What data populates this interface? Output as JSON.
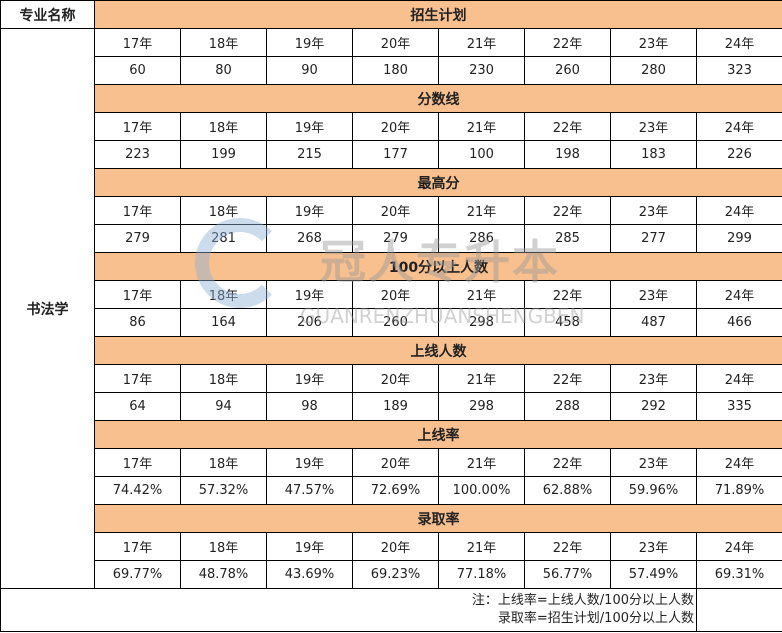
{
  "header": {
    "major_label": "专业名称",
    "major": "书法学"
  },
  "years": [
    "17年",
    "18年",
    "19年",
    "20年",
    "21年",
    "22年",
    "23年",
    "24年"
  ],
  "sections": [
    {
      "title": "招生计划",
      "values": [
        "60",
        "80",
        "90",
        "180",
        "230",
        "260",
        "280",
        "323"
      ]
    },
    {
      "title": "分数线",
      "values": [
        "223",
        "199",
        "215",
        "177",
        "100",
        "198",
        "183",
        "226"
      ]
    },
    {
      "title": "最高分",
      "values": [
        "279",
        "281",
        "268",
        "279",
        "286",
        "285",
        "277",
        "299"
      ]
    },
    {
      "title": "100分以上人数",
      "values": [
        "86",
        "164",
        "206",
        "260",
        "298",
        "458",
        "487",
        "466"
      ]
    },
    {
      "title": "上线人数",
      "values": [
        "64",
        "94",
        "98",
        "189",
        "298",
        "288",
        "292",
        "335"
      ]
    },
    {
      "title": "上线率",
      "values": [
        "74.42%",
        "57.32%",
        "47.57%",
        "72.69%",
        "100.00%",
        "62.88%",
        "59.96%",
        "71.89%"
      ]
    },
    {
      "title": "录取率",
      "values": [
        "69.77%",
        "48.78%",
        "43.69%",
        "69.23%",
        "77.18%",
        "56.77%",
        "57.49%",
        "69.31%"
      ]
    }
  ],
  "note": {
    "line1": "注：上线率=上线人数/100分以上人数",
    "line2": "录取率=招生计划/100分以上人数"
  },
  "watermark": {
    "cn": "冠人专升本",
    "en": "GUANRENZHUANSHENGBEN"
  },
  "colors": {
    "header_bg": "#f8bf8f"
  }
}
